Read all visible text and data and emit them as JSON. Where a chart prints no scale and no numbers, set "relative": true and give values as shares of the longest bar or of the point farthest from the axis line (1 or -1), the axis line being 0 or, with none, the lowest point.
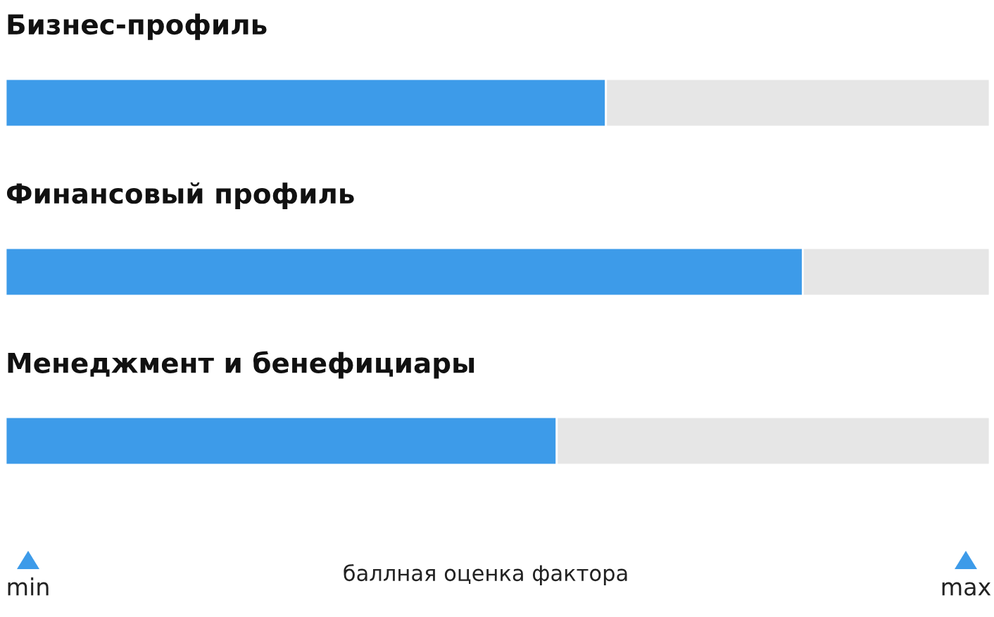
{
  "chart_data": {
    "type": "bar",
    "orientation": "horizontal",
    "stacked": true,
    "relative": true,
    "legend": false,
    "categories": [
      "Бизнес-профиль",
      "Финансовый профиль",
      "Менеджмент и бенефициары"
    ],
    "series": [
      {
        "color": "#3d9be9",
        "values": [
          0.61,
          0.81,
          0.56
        ]
      },
      {
        "color": "#e6e6e6",
        "values": [
          0.39,
          0.19,
          0.44
        ]
      }
    ],
    "annotations": [
      "min",
      "баллная оценка фактора",
      "max"
    ]
  }
}
